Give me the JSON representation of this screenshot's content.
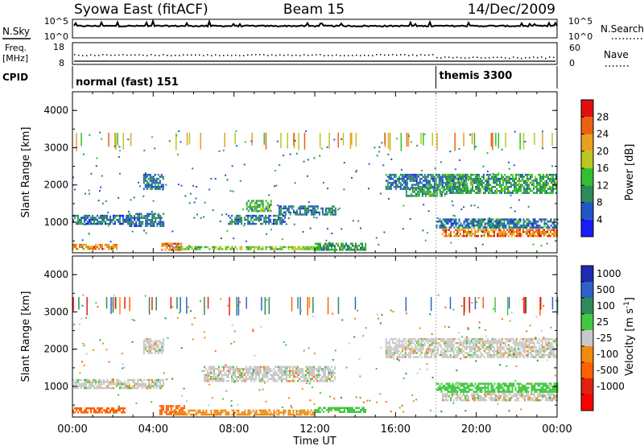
{
  "header": {
    "station": "Syowa East (fitACF)",
    "beam": "Beam 15",
    "date": "14/Dec/2009"
  },
  "strips": {
    "nsky_label": "N.Sky",
    "nsky_ticks": [
      "10^5",
      "10^0"
    ],
    "nsearch_label": "N.Search",
    "nsearch_ticks": [
      "10^5",
      "10^0"
    ],
    "freq_label": "Freq.",
    "freq_unit": "[MHz]",
    "freq_ticks": [
      "18",
      "8"
    ],
    "nave_label": "Nave",
    "nave_ticks": [
      "60",
      "0"
    ],
    "cpid_label": "CPID",
    "cpid_segments": [
      {
        "name": "normal (fast) 151",
        "start_hour": 0,
        "end_hour": 18
      },
      {
        "name": "themis 3300",
        "start_hour": 18,
        "end_hour": 24
      }
    ]
  },
  "axes": {
    "ylabel": "Slant Range [km]",
    "xlabel": "Time UT",
    "x_tick_labels": [
      "00:00",
      "04:00",
      "08:00",
      "12:00",
      "16:00",
      "20:00",
      "00:00"
    ],
    "y_tick_labels": [
      "1000",
      "2000",
      "3000",
      "4000"
    ]
  },
  "colorbars": {
    "power": {
      "label": "Power [dB]",
      "ticks": [
        "4",
        "8",
        "12",
        "16",
        "20",
        "24",
        "28"
      ],
      "colors": [
        "#1a1aff",
        "#2255c8",
        "#2e8a5a",
        "#30c030",
        "#b8c820",
        "#e8a020",
        "#ee6010",
        "#e01010"
      ]
    },
    "velocity": {
      "label": "Velocity [m s",
      "label_sup": "-1",
      "label_end": "]",
      "ticks": [
        "1000",
        "500",
        "100",
        "25",
        "-25",
        "-100",
        "-500",
        "-1000"
      ],
      "colors": [
        "#1f2ab0",
        "#2d62c8",
        "#2e8a5a",
        "#44c844",
        "#c8c8c8",
        "#f08a10",
        "#ff6000",
        "#e02010",
        "#ff0000"
      ]
    }
  },
  "chart_data": {
    "type": "heatmap",
    "title": "Syowa East (fitACF)",
    "x_range_hours": [
      0,
      24
    ],
    "y_range_km": [
      180,
      4500
    ],
    "power_bands": [
      {
        "t0": 0.0,
        "t1": 2.2,
        "r0": 280,
        "r1": 420,
        "power": 24
      },
      {
        "t0": 0.0,
        "t1": 2.8,
        "r0": 950,
        "r1": 1200,
        "power": 8
      },
      {
        "t0": 2.8,
        "t1": 4.5,
        "r0": 900,
        "r1": 1250,
        "power": 8
      },
      {
        "t0": 3.5,
        "t1": 4.5,
        "r0": 1900,
        "r1": 2300,
        "power": 8
      },
      {
        "t0": 4.4,
        "t1": 5.4,
        "r0": 280,
        "r1": 450,
        "power": 24
      },
      {
        "t0": 5.0,
        "t1": 12.0,
        "r0": 260,
        "r1": 360,
        "power": 16
      },
      {
        "t0": 7.7,
        "t1": 10.5,
        "r0": 950,
        "r1": 1200,
        "power": 8
      },
      {
        "t0": 8.6,
        "t1": 9.8,
        "r0": 1300,
        "r1": 1600,
        "power": 12
      },
      {
        "t0": 10.2,
        "t1": 13.0,
        "r0": 1200,
        "r1": 1450,
        "power": 8
      },
      {
        "t0": 12.0,
        "t1": 14.5,
        "r0": 280,
        "r1": 450,
        "power": 12
      },
      {
        "t0": 15.5,
        "t1": 19.5,
        "r0": 1900,
        "r1": 2300,
        "power": 8
      },
      {
        "t0": 16.5,
        "t1": 18.5,
        "r0": 1700,
        "r1": 1950,
        "power": 12
      },
      {
        "t0": 18.5,
        "t1": 24.0,
        "r0": 1800,
        "r1": 2300,
        "power": 12
      },
      {
        "t0": 18.0,
        "t1": 24.0,
        "r0": 850,
        "r1": 1100,
        "power": 8
      },
      {
        "t0": 18.3,
        "t1": 24.0,
        "r0": 650,
        "r1": 820,
        "power": 24
      }
    ],
    "velocity_bands": [
      {
        "t0": 0.0,
        "t1": 2.6,
        "r0": 280,
        "r1": 440,
        "velocity": -200
      },
      {
        "t0": 4.3,
        "t1": 5.5,
        "r0": 280,
        "r1": 500,
        "velocity": -200
      },
      {
        "t0": 5.0,
        "t1": 12.0,
        "r0": 260,
        "r1": 380,
        "velocity": -60
      },
      {
        "t0": 0.0,
        "t1": 4.5,
        "r0": 950,
        "r1": 1200,
        "velocity": 0
      },
      {
        "t0": 3.5,
        "t1": 4.5,
        "r0": 1900,
        "r1": 2300,
        "velocity": 0
      },
      {
        "t0": 6.5,
        "t1": 13.0,
        "r0": 1150,
        "r1": 1550,
        "velocity": 0
      },
      {
        "t0": 12.0,
        "t1": 14.5,
        "r0": 300,
        "r1": 450,
        "velocity": 60
      },
      {
        "t0": 15.5,
        "t1": 24.0,
        "r0": 1800,
        "r1": 2300,
        "velocity": 0
      },
      {
        "t0": 18.0,
        "t1": 24.0,
        "r0": 850,
        "r1": 1100,
        "velocity": 60
      },
      {
        "t0": 18.3,
        "t1": 24.0,
        "r0": 650,
        "r1": 820,
        "velocity": 0
      }
    ]
  }
}
